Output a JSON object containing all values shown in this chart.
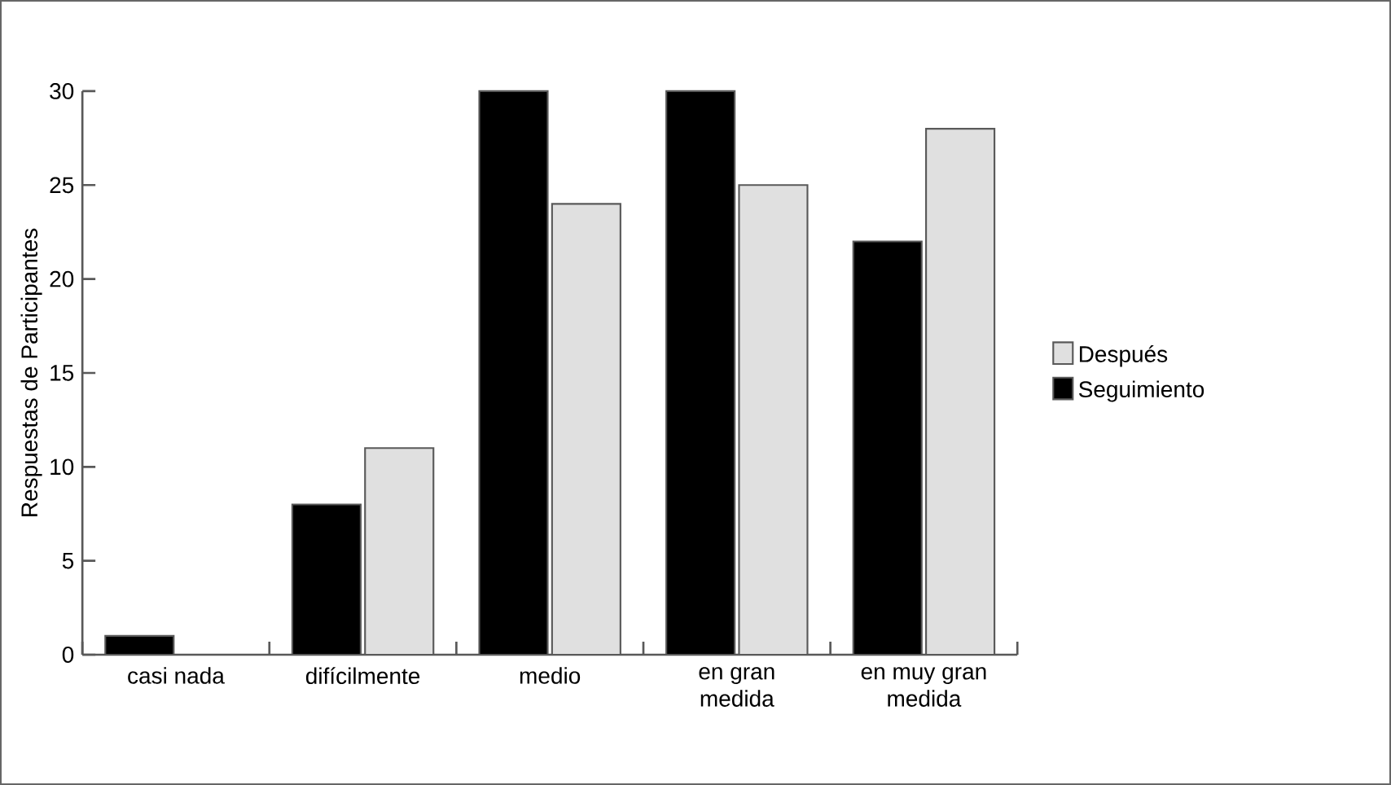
{
  "chart_data": {
    "type": "bar",
    "ylabel": "Respuestas de Participantes",
    "categories": [
      "casi nada",
      "difícilmente",
      "medio",
      "en gran medida",
      "en muy gran medida"
    ],
    "series": [
      {
        "name": "Seguimiento",
        "color": "#000000",
        "values": [
          1,
          8,
          30,
          30,
          22
        ]
      },
      {
        "name": "Después",
        "color": "#e0e0e0",
        "values": [
          null,
          11,
          24,
          25,
          28
        ]
      }
    ],
    "ylim": [
      0,
      30
    ],
    "yticks": [
      0,
      5,
      10,
      15,
      20,
      25,
      30
    ],
    "legend": "right"
  }
}
